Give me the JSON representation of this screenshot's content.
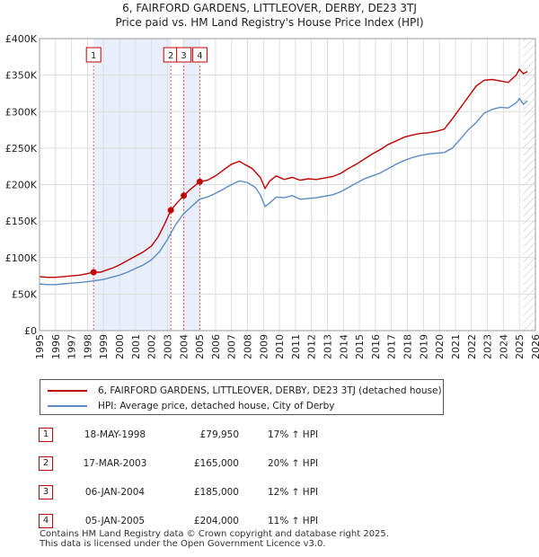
{
  "chart_data": {
    "type": "line",
    "title": "6, FAIRFORD GARDENS, LITTLEOVER, DERBY, DE23 3TJ",
    "subtitle": "Price paid vs. HM Land Registry's House Price Index (HPI)",
    "xlim": [
      1995,
      2026
    ],
    "ylim": [
      0,
      400000
    ],
    "x_ticks": [
      "1995",
      "1996",
      "1997",
      "1998",
      "1999",
      "2000",
      "2001",
      "2002",
      "2003",
      "2004",
      "2005",
      "2006",
      "2007",
      "2008",
      "2009",
      "2010",
      "2011",
      "2012",
      "2013",
      "2014",
      "2015",
      "2016",
      "2017",
      "2018",
      "2019",
      "2020",
      "2021",
      "2022",
      "2023",
      "2024",
      "2025",
      "2026"
    ],
    "y_ticks": [
      {
        "value": 0,
        "label": "£0"
      },
      {
        "value": 50000,
        "label": "£50K"
      },
      {
        "value": 100000,
        "label": "£100K"
      },
      {
        "value": 150000,
        "label": "£150K"
      },
      {
        "value": 200000,
        "label": "£200K"
      },
      {
        "value": 250000,
        "label": "£250K"
      },
      {
        "value": 300000,
        "label": "£300K"
      },
      {
        "value": 350000,
        "label": "£350K"
      },
      {
        "value": 400000,
        "label": "£400K"
      }
    ],
    "shaded_spans": [
      [
        1998.38,
        2003.21
      ],
      [
        2004.02,
        2005.02
      ]
    ],
    "forecast_start": 2025.25,
    "series": [
      {
        "name": "6, FAIRFORD GARDENS, LITTLEOVER, DERBY, DE23 3TJ (detached house)",
        "color": "#c00000",
        "x": [
          1995.0,
          1995.5,
          1996.0,
          1996.5,
          1997.0,
          1997.5,
          1998.0,
          1998.38,
          1998.8,
          1999.2,
          1999.6,
          2000.0,
          2000.5,
          2001.0,
          2001.5,
          2002.0,
          2002.4,
          2002.8,
          2003.21,
          2003.6,
          2004.02,
          2004.4,
          2005.02,
          2005.5,
          2006.0,
          2006.5,
          2007.0,
          2007.5,
          2007.8,
          2008.3,
          2008.8,
          2009.1,
          2009.4,
          2009.8,
          2010.3,
          2010.8,
          2011.3,
          2011.8,
          2012.3,
          2012.8,
          2013.3,
          2013.8,
          2014.3,
          2014.8,
          2015.3,
          2015.8,
          2016.3,
          2016.8,
          2017.3,
          2017.8,
          2018.3,
          2018.8,
          2019.3,
          2019.8,
          2020.3,
          2020.8,
          2021.3,
          2021.8,
          2022.3,
          2022.8,
          2023.3,
          2023.8,
          2024.3,
          2024.8,
          2025.0,
          2025.25,
          2025.5
        ],
        "values": [
          74000,
          73000,
          73000,
          74000,
          75000,
          76000,
          78000,
          79950,
          80000,
          83000,
          86000,
          90000,
          96000,
          102000,
          108000,
          116000,
          128000,
          145000,
          165000,
          175000,
          185000,
          193000,
          204000,
          206000,
          212000,
          220000,
          228000,
          232000,
          228000,
          222000,
          210000,
          195000,
          205000,
          212000,
          207000,
          210000,
          206000,
          208000,
          207000,
          209000,
          211000,
          215000,
          222000,
          228000,
          235000,
          242000,
          248000,
          255000,
          260000,
          265000,
          268000,
          270000,
          271000,
          273000,
          276000,
          290000,
          305000,
          320000,
          335000,
          343000,
          344000,
          342000,
          340000,
          350000,
          358000,
          352000,
          355000
        ]
      },
      {
        "name": "HPI: Average price, detached house, City of Derby",
        "color": "#5b8bc6",
        "x": [
          1995.0,
          1995.5,
          1996.0,
          1996.5,
          1997.0,
          1997.5,
          1998.0,
          1998.5,
          1999.0,
          1999.5,
          2000.0,
          2000.5,
          2001.0,
          2001.5,
          2002.0,
          2002.5,
          2003.0,
          2003.5,
          2004.0,
          2004.5,
          2005.0,
          2005.5,
          2006.0,
          2006.5,
          2007.0,
          2007.5,
          2008.0,
          2008.5,
          2008.8,
          2009.1,
          2009.4,
          2009.8,
          2010.3,
          2010.8,
          2011.3,
          2011.8,
          2012.3,
          2012.8,
          2013.3,
          2013.8,
          2014.3,
          2014.8,
          2015.3,
          2015.8,
          2016.3,
          2016.8,
          2017.3,
          2017.8,
          2018.3,
          2018.8,
          2019.3,
          2019.8,
          2020.3,
          2020.8,
          2021.3,
          2021.8,
          2022.3,
          2022.8,
          2023.3,
          2023.8,
          2024.3,
          2024.8,
          2025.0,
          2025.25,
          2025.5
        ],
        "values": [
          64000,
          63000,
          63000,
          64000,
          65000,
          66000,
          67000,
          68500,
          70000,
          73000,
          76000,
          80000,
          85000,
          90000,
          97000,
          108000,
          125000,
          145000,
          160000,
          170000,
          180000,
          183000,
          188000,
          194000,
          200000,
          205000,
          203000,
          196000,
          186000,
          170000,
          175000,
          183000,
          182000,
          185000,
          180000,
          181000,
          182000,
          184000,
          186000,
          190000,
          196000,
          202000,
          208000,
          212000,
          216000,
          222000,
          228000,
          233000,
          237000,
          240000,
          242000,
          243000,
          244000,
          250000,
          262000,
          275000,
          285000,
          298000,
          303000,
          306000,
          305000,
          312000,
          318000,
          310000,
          315000
        ]
      }
    ],
    "sales": [
      {
        "num": "1",
        "x": 1998.38,
        "price": 79950
      },
      {
        "num": "2",
        "x": 2003.21,
        "price": 165000
      },
      {
        "num": "3",
        "x": 2004.02,
        "price": 185000
      },
      {
        "num": "4",
        "x": 2005.02,
        "price": 204000
      }
    ]
  },
  "legend": {
    "items": [
      {
        "label": "6, FAIRFORD GARDENS, LITTLEOVER, DERBY, DE23 3TJ (detached house)",
        "color": "#c00000"
      },
      {
        "label": "HPI: Average price, detached house, City of Derby",
        "color": "#5b8bc6"
      }
    ]
  },
  "transactions": [
    {
      "num": "1",
      "date": "18-MAY-1998",
      "price": "£79,950",
      "hpi": "17% ↑ HPI"
    },
    {
      "num": "2",
      "date": "17-MAR-2003",
      "price": "£165,000",
      "hpi": "20% ↑ HPI"
    },
    {
      "num": "3",
      "date": "06-JAN-2004",
      "price": "£185,000",
      "hpi": "12% ↑ HPI"
    },
    {
      "num": "4",
      "date": "05-JAN-2005",
      "price": "£204,000",
      "hpi": "11% ↑ HPI"
    }
  ],
  "footer": {
    "line1": "Contains HM Land Registry data © Crown copyright and database right 2025.",
    "line2": "This data is licensed under the Open Government Licence v3.0."
  }
}
